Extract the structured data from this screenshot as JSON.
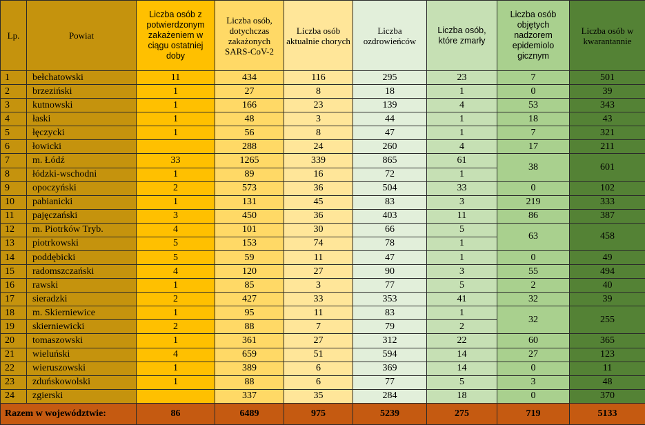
{
  "colors": {
    "lp_powiat": "#c5930d",
    "new_cases": "#ffc000",
    "total_cases": "#ffd966",
    "currently_sick": "#ffe699",
    "recovered": "#e2efda",
    "deaths": "#c6e0b4",
    "epidemiological": "#a9d08e",
    "quarantine": "#548235",
    "footer": "#c55a11"
  },
  "headers": {
    "lp": "Lp.",
    "powiat": "Powiat",
    "new_cases": "Liczba osób z potwierdzonym zakażeniem w ciągu ostatniej doby",
    "total_cases": "Liczba osób, dotychczas zakażonych SARS-CoV-2",
    "currently_sick": "Liczba osób aktualnie chorych",
    "recovered": "Liczba ozdrowieńców",
    "deaths": "Liczba osób, które zmarły",
    "epidemiological": "Liczba osób objętych nadzorem epidemiolo gicznym",
    "quarantine": "Liczba osób w kwarantannie"
  },
  "rows": [
    {
      "lp": "1",
      "powiat": "bełchatowski",
      "new": "11",
      "total": "434",
      "sick": "116",
      "recovered": "295",
      "deaths": "23",
      "epi": "7",
      "quar": "501"
    },
    {
      "lp": "2",
      "powiat": "brzeziński",
      "new": "1",
      "total": "27",
      "sick": "8",
      "recovered": "18",
      "deaths": "1",
      "epi": "0",
      "quar": "39"
    },
    {
      "lp": "3",
      "powiat": "kutnowski",
      "new": "1",
      "total": "166",
      "sick": "23",
      "recovered": "139",
      "deaths": "4",
      "epi": "53",
      "quar": "343"
    },
    {
      "lp": "4",
      "powiat": "łaski",
      "new": "1",
      "total": "48",
      "sick": "3",
      "recovered": "44",
      "deaths": "1",
      "epi": "18",
      "quar": "43"
    },
    {
      "lp": "5",
      "powiat": "łęczycki",
      "new": "1",
      "total": "56",
      "sick": "8",
      "recovered": "47",
      "deaths": "1",
      "epi": "7",
      "quar": "321"
    },
    {
      "lp": "6",
      "powiat": "łowicki",
      "new": "",
      "total": "288",
      "sick": "24",
      "recovered": "260",
      "deaths": "4",
      "epi": "17",
      "quar": "211"
    },
    {
      "lp": "7",
      "powiat": "m. Łódź",
      "new": "33",
      "total": "1265",
      "sick": "339",
      "recovered": "865",
      "deaths": "61",
      "epi": "38",
      "quar": "601"
    },
    {
      "lp": "8",
      "powiat": "łódzki-wschodni",
      "new": "1",
      "total": "89",
      "sick": "16",
      "recovered": "72",
      "deaths": "1"
    },
    {
      "lp": "9",
      "powiat": "opoczyński",
      "new": "2",
      "total": "573",
      "sick": "36",
      "recovered": "504",
      "deaths": "33",
      "epi": "0",
      "quar": "102"
    },
    {
      "lp": "10",
      "powiat": "pabianicki",
      "new": "1",
      "total": "131",
      "sick": "45",
      "recovered": "83",
      "deaths": "3",
      "epi": "219",
      "quar": "333"
    },
    {
      "lp": "11",
      "powiat": "pajęczański",
      "new": "3",
      "total": "450",
      "sick": "36",
      "recovered": "403",
      "deaths": "11",
      "epi": "86",
      "quar": "387"
    },
    {
      "lp": "12",
      "powiat": "m. Piotrków Tryb.",
      "new": "4",
      "total": "101",
      "sick": "30",
      "recovered": "66",
      "deaths": "5",
      "epi": "63",
      "quar": "458"
    },
    {
      "lp": "13",
      "powiat": "piotrkowski",
      "new": "5",
      "total": "153",
      "sick": "74",
      "recovered": "78",
      "deaths": "1"
    },
    {
      "lp": "14",
      "powiat": "poddębicki",
      "new": "5",
      "total": "59",
      "sick": "11",
      "recovered": "47",
      "deaths": "1",
      "epi": "0",
      "quar": "49"
    },
    {
      "lp": "15",
      "powiat": "radomszczański",
      "new": "4",
      "total": "120",
      "sick": "27",
      "recovered": "90",
      "deaths": "3",
      "epi": "55",
      "quar": "494"
    },
    {
      "lp": "16",
      "powiat": "rawski",
      "new": "1",
      "total": "85",
      "sick": "3",
      "recovered": "77",
      "deaths": "5",
      "epi": "2",
      "quar": "40"
    },
    {
      "lp": "17",
      "powiat": "sieradzki",
      "new": "2",
      "total": "427",
      "sick": "33",
      "recovered": "353",
      "deaths": "41",
      "epi": "32",
      "quar": "39"
    },
    {
      "lp": "18",
      "powiat": "m. Skierniewice",
      "new": "1",
      "total": "95",
      "sick": "11",
      "recovered": "83",
      "deaths": "1",
      "epi": "32",
      "quar": "255"
    },
    {
      "lp": "19",
      "powiat": "skierniewicki",
      "new": "2",
      "total": "88",
      "sick": "7",
      "recovered": "79",
      "deaths": "2"
    },
    {
      "lp": "20",
      "powiat": "tomaszowski",
      "new": "1",
      "total": "361",
      "sick": "27",
      "recovered": "312",
      "deaths": "22",
      "epi": "60",
      "quar": "365"
    },
    {
      "lp": "21",
      "powiat": "wieluński",
      "new": "4",
      "total": "659",
      "sick": "51",
      "recovered": "594",
      "deaths": "14",
      "epi": "27",
      "quar": "123"
    },
    {
      "lp": "22",
      "powiat": "wieruszowski",
      "new": "1",
      "total": "389",
      "sick": "6",
      "recovered": "369",
      "deaths": "14",
      "epi": "0",
      "quar": "11"
    },
    {
      "lp": "23",
      "powiat": "zduńskowolski",
      "new": "1",
      "total": "88",
      "sick": "6",
      "recovered": "77",
      "deaths": "5",
      "epi": "3",
      "quar": "48"
    },
    {
      "lp": "24",
      "powiat": "zgierski",
      "new": "",
      "total": "337",
      "sick": "35",
      "recovered": "284",
      "deaths": "18",
      "epi": "0",
      "quar": "370"
    }
  ],
  "footer": {
    "label": "Razem w województwie:",
    "new": "86",
    "total": "6489",
    "sick": "975",
    "recovered": "5239",
    "deaths": "275",
    "epi": "719",
    "quar": "5133"
  }
}
